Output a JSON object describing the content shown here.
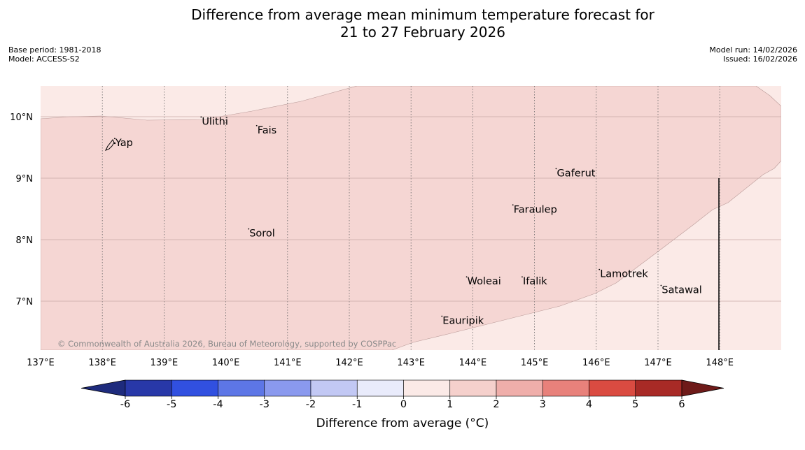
{
  "title": {
    "line1": "Difference from average mean minimum temperature forecast for",
    "line2": "21 to 27 February 2026"
  },
  "meta_left": {
    "base_period": "Base period: 1981-2018",
    "model": "Model: ACCESS-S2"
  },
  "meta_right": {
    "model_run": "Model run: 14/02/2026",
    "issued": "Issued: 16/02/2026"
  },
  "map": {
    "lon_range": [
      137,
      149
    ],
    "lat_range": [
      6.2,
      10.5
    ],
    "lon_ticks": [
      137,
      138,
      139,
      140,
      141,
      142,
      143,
      144,
      145,
      146,
      147,
      148
    ],
    "lon_labels": [
      "137°E",
      "138°E",
      "139°E",
      "140°E",
      "141°E",
      "142°E",
      "143°E",
      "144°E",
      "145°E",
      "146°E",
      "147°E",
      "148°E"
    ],
    "lat_ticks": [
      7,
      8,
      9,
      10
    ],
    "lat_labels": [
      "7°N",
      "8°N",
      "9°N",
      "10°N"
    ],
    "places": [
      {
        "name": "Yap",
        "lon": 138.2,
        "lat": 9.52
      },
      {
        "name": "Ulithi",
        "lon": 139.6,
        "lat": 9.87
      },
      {
        "name": "Fais",
        "lon": 140.5,
        "lat": 9.73
      },
      {
        "name": "Gaferut",
        "lon": 145.35,
        "lat": 9.03
      },
      {
        "name": "Faraulep",
        "lon": 144.65,
        "lat": 8.44
      },
      {
        "name": "Sorol",
        "lon": 140.37,
        "lat": 8.05
      },
      {
        "name": "Lamotrek",
        "lon": 146.05,
        "lat": 7.39
      },
      {
        "name": "Woleai",
        "lon": 143.9,
        "lat": 7.27
      },
      {
        "name": "Ifalik",
        "lon": 144.8,
        "lat": 7.27
      },
      {
        "name": "Satawal",
        "lon": 147.05,
        "lat": 7.13
      },
      {
        "name": "Eauripik",
        "lon": 143.5,
        "lat": 6.63
      }
    ],
    "copyright": "© Commonwealth of Australia 2026, Bureau of Meteorology, supported by COSPPac",
    "colors": {
      "class_0_1": "#fbeae7",
      "class_1_2": "#f5d6d3",
      "grid": "#c8a9a7",
      "boundary": "#111111"
    }
  },
  "legend": {
    "label": "Difference from average (°C)",
    "ticks": [
      "-6",
      "-5",
      "-4",
      "-3",
      "-2",
      "-1",
      "0",
      "1",
      "2",
      "3",
      "4",
      "5",
      "6"
    ],
    "colors": [
      "#2838a8",
      "#3150e0",
      "#5d76e6",
      "#8a99ee",
      "#c2c8f4",
      "#e9ebfb",
      "#fbeae7",
      "#f5d0cc",
      "#efaeaa",
      "#e8817b",
      "#da4b41",
      "#a82a26"
    ],
    "under_color": "#1e2b7d",
    "over_color": "#6e1a19"
  }
}
